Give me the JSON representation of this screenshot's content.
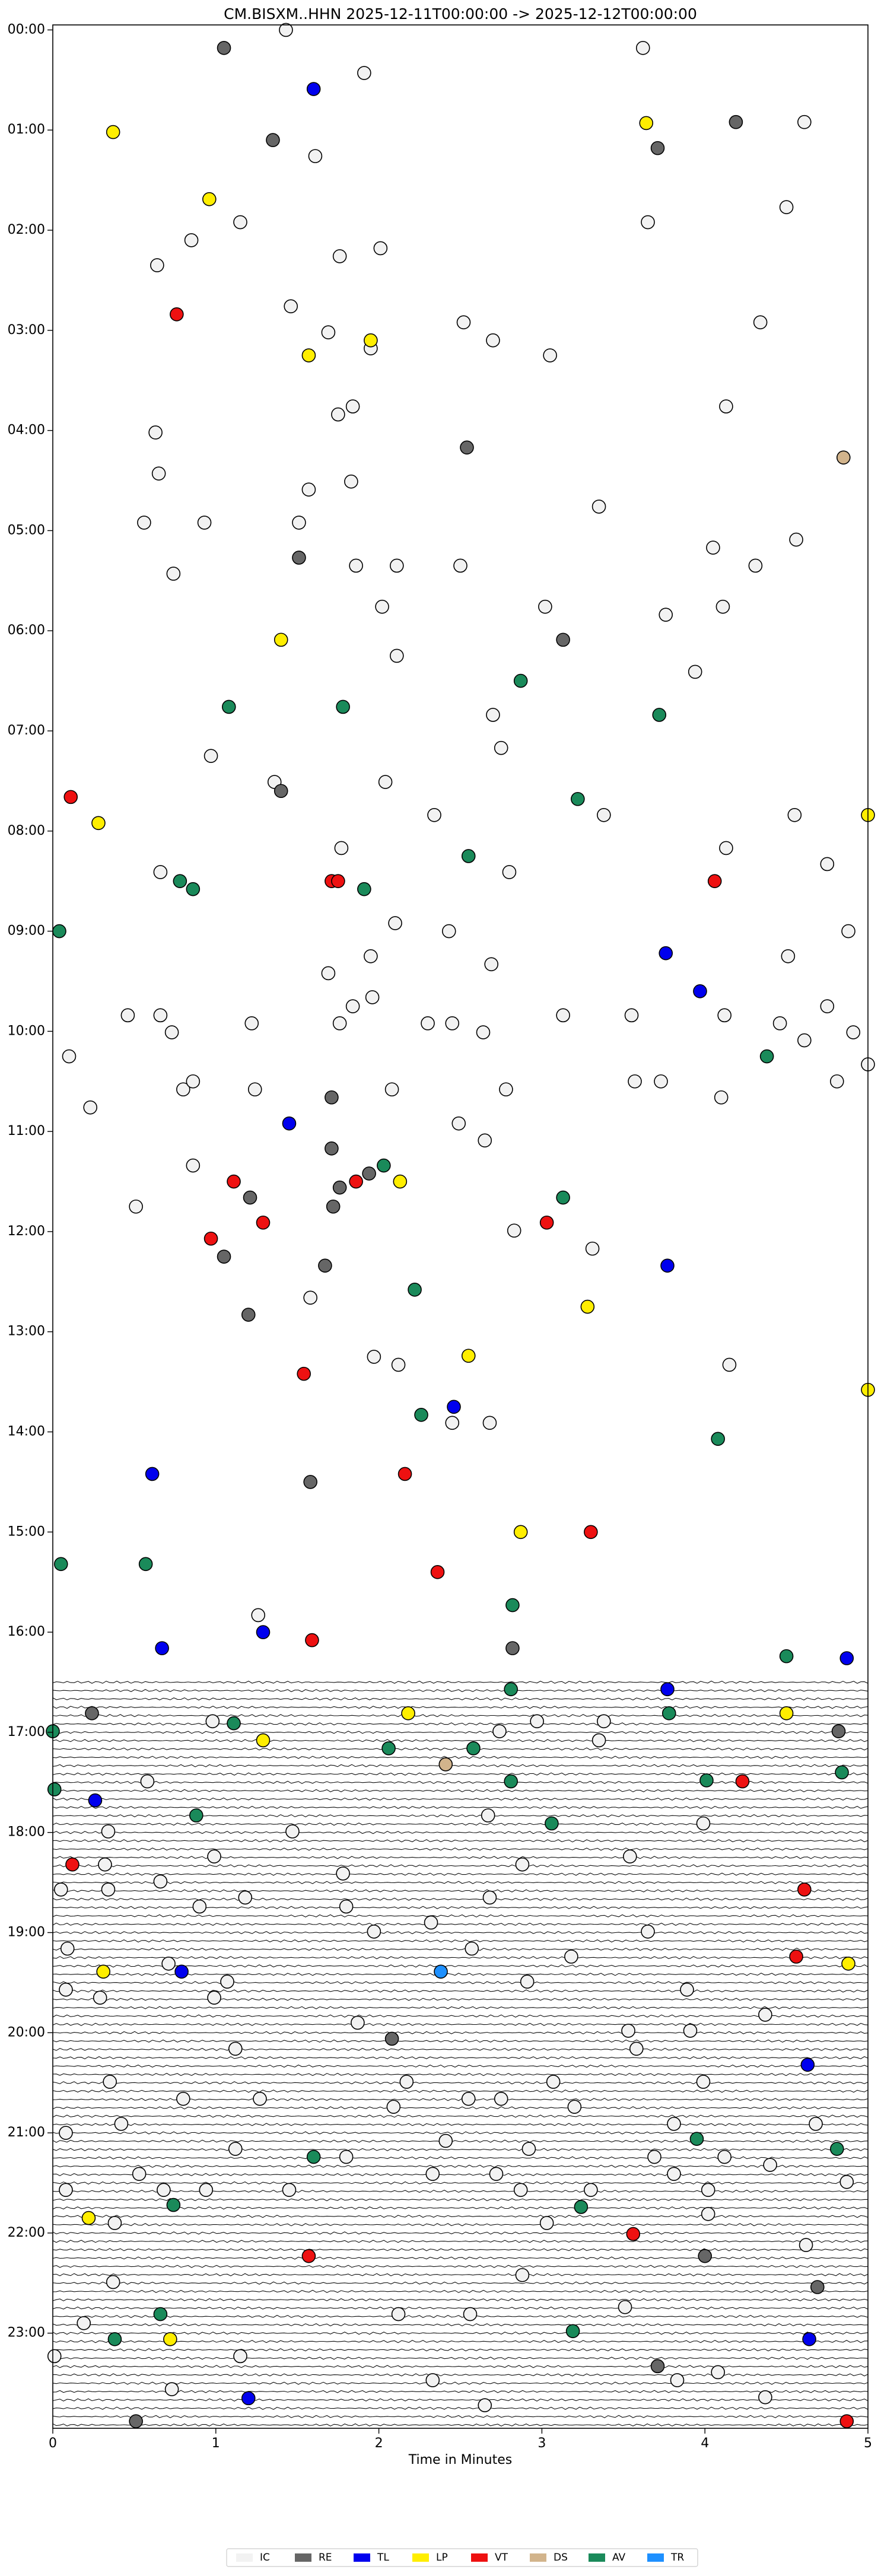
{
  "chart_data": {
    "type": "helicorder",
    "title": "CM.BISXM..HHN  2025-12-11T00:00:00 -> 2025-12-12T00:00:00",
    "xlabel": "Time in Minutes",
    "xlim": [
      0,
      5
    ],
    "xticks": [
      0,
      1,
      2,
      3,
      4,
      5
    ],
    "ylim": [
      -0.05,
      23.95
    ],
    "y_inverted": true,
    "yticks": [
      {
        "value": 0,
        "label": "00:00"
      },
      {
        "value": 1,
        "label": "01:00"
      },
      {
        "value": 2,
        "label": "02:00"
      },
      {
        "value": 3,
        "label": "03:00"
      },
      {
        "value": 4,
        "label": "04:00"
      },
      {
        "value": 5,
        "label": "05:00"
      },
      {
        "value": 6,
        "label": "06:00"
      },
      {
        "value": 7,
        "label": "07:00"
      },
      {
        "value": 8,
        "label": "08:00"
      },
      {
        "value": 9,
        "label": "09:00"
      },
      {
        "value": 10,
        "label": "10:00"
      },
      {
        "value": 11,
        "label": "11:00"
      },
      {
        "value": 12,
        "label": "12:00"
      },
      {
        "value": 13,
        "label": "13:00"
      },
      {
        "value": 14,
        "label": "14:00"
      },
      {
        "value": 15,
        "label": "15:00"
      },
      {
        "value": 16,
        "label": "16:00"
      },
      {
        "value": 17,
        "label": "17:00"
      },
      {
        "value": 18,
        "label": "18:00"
      },
      {
        "value": 19,
        "label": "19:00"
      },
      {
        "value": 20,
        "label": "20:00"
      },
      {
        "value": 21,
        "label": "21:00"
      },
      {
        "value": 22,
        "label": "22:00"
      },
      {
        "value": 23,
        "label": "23:00"
      }
    ],
    "traces_from": 16.5,
    "legend": "bottom",
    "series": [
      {
        "name": "IC",
        "color": "#f2f2f2",
        "x": [
          1.43,
          3.62,
          1.91,
          4.61,
          1.61,
          4.5,
          1.15,
          3.65,
          0.85,
          2.01,
          1.76,
          0.64,
          1.46,
          4.34,
          2.52,
          1.69,
          2.7,
          1.95,
          3.05,
          1.84,
          4.13,
          1.75,
          0.63,
          0.65,
          1.83,
          1.57,
          3.35,
          0.56,
          0.93,
          1.51,
          4.56,
          4.05,
          4.31,
          1.86,
          2.11,
          2.5,
          0.74,
          2.02,
          3.02,
          3.76,
          4.11,
          2.11,
          3.94,
          2.7,
          2.75,
          0.97,
          1.36,
          2.04,
          2.34,
          3.38,
          4.55,
          1.77,
          4.13,
          4.75,
          0.66,
          2.8,
          2.1,
          2.43,
          4.88,
          4.51,
          2.69,
          1.95,
          1.69,
          1.84,
          1.96,
          4.75,
          0.46,
          0.66,
          3.13,
          3.55,
          4.12,
          4.46,
          1.22,
          1.76,
          2.3,
          2.45,
          2.64,
          0.73,
          4.61,
          4.91,
          5.0,
          0.1,
          0.23,
          0.8,
          0.86,
          1.24,
          2.08,
          2.78,
          3.57,
          3.73,
          4.81,
          4.1,
          2.49,
          2.65,
          0.86,
          0.51,
          2.83,
          3.31,
          1.58,
          1.97,
          2.12,
          4.15,
          2.68,
          2.45,
          1.26,
          0.98,
          2.74,
          2.97,
          3.38,
          3.35,
          0.58,
          2.67,
          3.99,
          1.47,
          0.34,
          0.99,
          3.54,
          2.88,
          0.32,
          1.78,
          0.66,
          0.05,
          0.34,
          1.18,
          2.68,
          0.9,
          1.8,
          2.32,
          1.97,
          3.65,
          0.09,
          2.57,
          3.18,
          0.71,
          1.07,
          2.91,
          0.08,
          0.29,
          0.99,
          3.89,
          4.37,
          1.87,
          3.53,
          3.91,
          1.12,
          3.58,
          0.35,
          2.17,
          3.07,
          3.99,
          0.8,
          1.27,
          2.55,
          2.75,
          3.2,
          0.08,
          2.09,
          3.81,
          4.68,
          0.42,
          1.12,
          1.8,
          2.41,
          2.92,
          3.69,
          4.12,
          4.4,
          0.53,
          2.33,
          2.72,
          3.81,
          0.68,
          0.08,
          1.45,
          2.87,
          3.3,
          4.02,
          4.87,
          0.94,
          0.38,
          3.03,
          4.02,
          4.62,
          2.88,
          0.37,
          3.51,
          2.56,
          2.12,
          0.19,
          0.01,
          1.15,
          4.08,
          3.83,
          2.33,
          0.73,
          4.37,
          2.65
        ],
        "y": [
          0.0,
          0.18,
          0.43,
          0.92,
          1.26,
          1.77,
          1.92,
          1.92,
          2.1,
          2.18,
          2.26,
          2.35,
          2.76,
          2.92,
          2.92,
          3.02,
          3.1,
          3.18,
          3.25,
          3.76,
          3.76,
          3.84,
          4.02,
          4.43,
          4.51,
          4.59,
          4.76,
          4.92,
          4.92,
          4.92,
          5.09,
          5.17,
          5.35,
          5.35,
          5.35,
          5.35,
          5.43,
          5.76,
          5.76,
          5.84,
          5.76,
          6.25,
          6.41,
          6.84,
          7.17,
          7.25,
          7.51,
          7.51,
          7.84,
          7.84,
          7.84,
          8.17,
          8.17,
          8.33,
          8.41,
          8.41,
          8.92,
          9.0,
          9.0,
          9.25,
          9.33,
          9.25,
          9.42,
          9.75,
          9.66,
          9.75,
          9.84,
          9.84,
          9.84,
          9.84,
          9.84,
          9.92,
          9.92,
          9.92,
          9.92,
          9.92,
          10.01,
          10.01,
          10.09,
          10.01,
          10.33,
          10.25,
          10.76,
          10.58,
          10.5,
          10.58,
          10.58,
          10.58,
          10.5,
          10.5,
          10.5,
          10.66,
          10.92,
          11.09,
          11.34,
          11.75,
          11.99,
          12.17,
          12.66,
          13.25,
          13.33,
          13.33,
          13.91,
          13.91,
          15.83,
          16.89,
          16.99,
          16.89,
          16.89,
          17.08,
          17.49,
          17.83,
          17.91,
          17.99,
          17.99,
          18.24,
          18.24,
          18.32,
          18.32,
          18.41,
          18.49,
          18.57,
          18.57,
          18.65,
          18.65,
          18.74,
          18.74,
          18.9,
          18.99,
          18.99,
          19.16,
          19.16,
          19.24,
          19.31,
          19.49,
          19.49,
          19.57,
          19.65,
          19.65,
          19.57,
          19.82,
          19.9,
          19.98,
          19.98,
          20.16,
          20.16,
          20.49,
          20.49,
          20.49,
          20.49,
          20.66,
          20.66,
          20.66,
          20.66,
          20.74,
          21.0,
          20.74,
          20.91,
          20.91,
          20.91,
          21.16,
          21.24,
          21.08,
          21.16,
          21.24,
          21.24,
          21.32,
          21.41,
          21.41,
          21.41,
          21.41,
          21.57,
          21.57,
          21.57,
          21.57,
          21.57,
          21.57,
          21.49,
          21.57,
          21.9,
          21.9,
          21.81,
          22.12,
          22.42,
          22.49,
          22.74,
          22.81,
          22.81,
          22.9,
          23.23,
          23.23,
          23.39,
          23.47,
          23.47,
          23.56,
          23.64,
          23.72
        ]
      },
      {
        "name": "RE",
        "color": "#666666",
        "x": [
          1.05,
          1.35,
          4.19,
          3.71,
          2.54,
          1.51,
          3.13,
          1.4,
          1.71,
          1.71,
          1.76,
          1.94,
          1.72,
          1.21,
          1.05,
          1.67,
          1.2,
          1.58,
          2.82,
          0.24,
          4.82,
          2.08,
          4.0,
          4.69,
          3.71,
          0.51
        ],
        "y": [
          0.18,
          1.1,
          0.92,
          1.18,
          4.17,
          5.27,
          6.09,
          7.6,
          10.66,
          11.17,
          11.56,
          11.42,
          11.75,
          11.66,
          12.25,
          12.34,
          12.83,
          14.5,
          16.16,
          16.81,
          16.99,
          20.06,
          22.23,
          22.54,
          23.33,
          23.88
        ]
      },
      {
        "name": "TL",
        "color": "#0000ee",
        "x": [
          1.6,
          1.45,
          3.76,
          3.97,
          3.77,
          2.46,
          0.61,
          1.29,
          0.67,
          4.87,
          3.77,
          0.26,
          0.79,
          4.63,
          4.64,
          1.2
        ],
        "y": [
          0.59,
          10.92,
          9.22,
          9.6,
          12.34,
          13.75,
          14.42,
          16.0,
          16.16,
          16.26,
          16.57,
          17.68,
          19.39,
          20.32,
          23.06,
          23.65
        ]
      },
      {
        "name": "LP",
        "color": "#ffee00",
        "x": [
          0.37,
          3.64,
          0.96,
          1.57,
          1.95,
          1.4,
          0.28,
          5.0,
          2.13,
          3.28,
          2.55,
          5.0,
          2.87,
          2.18,
          4.5,
          1.29,
          0.31,
          4.88,
          0.22,
          0.72
        ],
        "y": [
          1.02,
          0.93,
          1.69,
          3.25,
          3.1,
          6.09,
          7.92,
          7.84,
          11.5,
          12.75,
          13.24,
          13.58,
          15.0,
          16.81,
          16.81,
          17.08,
          19.39,
          19.31,
          21.85,
          23.06
        ]
      },
      {
        "name": "VT",
        "color": "#ee1111",
        "x": [
          0.76,
          0.11,
          1.71,
          1.75,
          4.06,
          1.11,
          1.86,
          1.29,
          0.97,
          3.03,
          1.54,
          2.16,
          3.3,
          2.36,
          1.59,
          4.23,
          0.12,
          4.61,
          4.56,
          1.57,
          3.56,
          4.87
        ],
        "y": [
          2.84,
          7.66,
          8.5,
          8.5,
          8.5,
          11.5,
          11.5,
          11.91,
          12.07,
          11.91,
          13.42,
          14.42,
          15.0,
          15.4,
          16.08,
          17.49,
          18.32,
          18.57,
          19.24,
          22.23,
          22.01,
          23.88
        ]
      },
      {
        "name": "DS",
        "color": "#d2b48c",
        "x": [
          4.85,
          2.41
        ],
        "y": [
          4.27,
          17.32
        ]
      },
      {
        "name": "AV",
        "color": "#1a8a5a",
        "x": [
          1.08,
          1.78,
          2.87,
          3.72,
          3.22,
          2.55,
          0.78,
          0.86,
          1.91,
          0.04,
          4.38,
          2.03,
          3.13,
          2.22,
          2.26,
          4.08,
          0.05,
          0.57,
          2.82,
          4.5,
          2.81,
          0.0,
          1.11,
          2.06,
          2.58,
          3.78,
          4.84,
          2.81,
          0.01,
          0.88,
          3.06,
          0.74,
          1.6,
          3.95,
          4.81,
          0.38,
          0.66,
          3.19,
          3.24,
          4.01
        ],
        "y": [
          6.76,
          6.76,
          6.5,
          6.84,
          7.68,
          8.25,
          8.5,
          8.58,
          8.58,
          9.0,
          10.25,
          11.34,
          11.66,
          12.58,
          13.83,
          14.07,
          15.32,
          15.32,
          15.73,
          16.24,
          16.57,
          16.99,
          16.91,
          17.16,
          17.16,
          16.81,
          17.4,
          17.49,
          17.57,
          17.83,
          17.91,
          21.72,
          21.24,
          21.06,
          21.16,
          23.06,
          22.81,
          22.98,
          21.74,
          17.48
        ]
      },
      {
        "name": "TR",
        "color": "#1e90ff",
        "x": [
          2.38
        ],
        "y": [
          19.39
        ]
      }
    ]
  }
}
